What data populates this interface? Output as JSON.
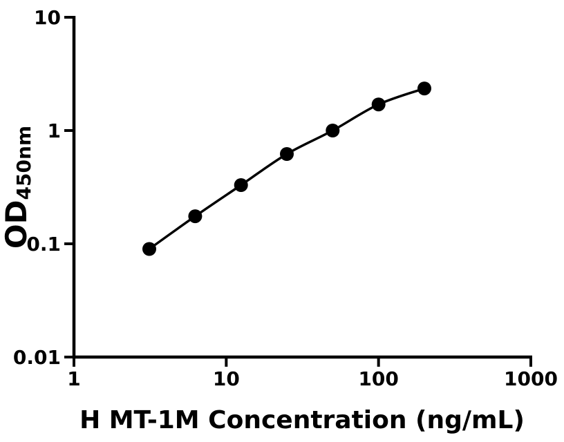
{
  "figure": {
    "background": "#ffffff",
    "ink_color": "#000000"
  },
  "chart_data": {
    "type": "scatter",
    "subtype": "line-with-markers",
    "xlabel": "H MT-1M Concentration (ng/mL)",
    "ylabel_main": "OD",
    "ylabel_sub": "450nm",
    "x_scale": "log",
    "y_scale": "log",
    "xlim": [
      1,
      1000
    ],
    "ylim": [
      0.01,
      10
    ],
    "x_ticks": [
      1,
      10,
      100,
      1000
    ],
    "x_tick_labels": [
      "1",
      "10",
      "100",
      "1000"
    ],
    "y_ticks": [
      0.01,
      0.1,
      1,
      10
    ],
    "y_tick_labels": [
      "0.01",
      "0.1",
      "1",
      "10"
    ],
    "x": [
      3.125,
      6.25,
      12.5,
      25,
      50,
      100,
      200
    ],
    "y": [
      0.09,
      0.175,
      0.33,
      0.62,
      1.0,
      1.7,
      2.35
    ],
    "grid": false,
    "legend": "none",
    "line_color": "#000000",
    "marker": {
      "shape": "circle",
      "color": "#000000"
    }
  }
}
